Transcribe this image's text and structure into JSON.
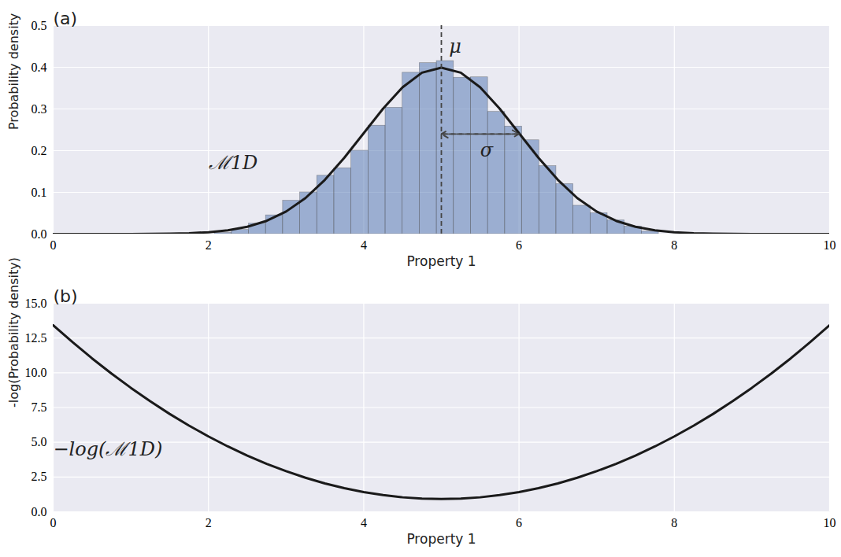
{
  "chart_data": [
    {
      "type": "histogram",
      "title": "(a)",
      "xlabel": "Property 1",
      "ylabel": "Probability density",
      "bins": [
        2.08,
        2.3,
        2.52,
        2.74,
        2.96,
        3.18,
        3.4,
        3.62,
        3.84,
        4.06,
        4.28,
        4.5,
        4.72,
        4.94,
        5.16,
        5.38,
        5.6,
        5.82,
        6.04,
        6.26,
        6.48,
        6.7,
        6.92,
        7.14,
        7.36,
        7.58,
        7.8
      ],
      "values": [
        0.003,
        0.01,
        0.025,
        0.045,
        0.08,
        0.1,
        0.14,
        0.158,
        0.2,
        0.26,
        0.303,
        0.387,
        0.41,
        0.415,
        0.375,
        0.376,
        0.293,
        0.258,
        0.225,
        0.163,
        0.12,
        0.068,
        0.05,
        0.033,
        0.018,
        0.006
      ],
      "color": "#4c72b0",
      "curve": {
        "color": "#1a1a1a",
        "x": [
          0,
          0.25,
          0.5,
          0.75,
          1,
          1.25,
          1.5,
          1.75,
          2,
          2.25,
          2.5,
          2.75,
          3,
          3.25,
          3.5,
          3.75,
          4,
          4.25,
          4.5,
          4.75,
          5,
          5.25,
          5.5,
          5.75,
          6,
          6.25,
          6.5,
          6.75,
          7,
          7.25,
          7.5,
          7.75,
          8,
          8.25,
          8.5,
          8.75,
          9,
          9.25,
          9.5,
          9.75,
          10
        ],
        "values": [
          0,
          0,
          0,
          0,
          0.0001,
          0.0004,
          0.0009,
          0.002,
          0.0044,
          0.0091,
          0.0175,
          0.0317,
          0.054,
          0.0863,
          0.13,
          0.183,
          0.242,
          0.301,
          0.352,
          0.387,
          0.399,
          0.387,
          0.352,
          0.301,
          0.242,
          0.183,
          0.13,
          0.0863,
          0.054,
          0.0317,
          0.0175,
          0.0091,
          0.0044,
          0.002,
          0.0009,
          0.0004,
          0.0001,
          0,
          0,
          0,
          0
        ]
      },
      "reference_lines": [
        {
          "x": 5,
          "line_style": "dashed"
        }
      ],
      "arrows": [
        {
          "x1": 5,
          "x2": 6,
          "y": 0.24,
          "line_style": "dashed"
        }
      ],
      "annotations": [
        {
          "text": "μ",
          "x": 5.1,
          "y": 0.45
        },
        {
          "text": "σ",
          "x": 5.5,
          "y": 0.2
        },
        {
          "text": "ℳ1D",
          "x": 2.0,
          "y": 0.17
        }
      ],
      "xlim": [
        0,
        10
      ],
      "ylim": [
        0,
        0.5
      ],
      "xticks": [
        0,
        2,
        4,
        6,
        8,
        10
      ],
      "yticks": [
        {
          "value": 0,
          "label": "0.0"
        },
        {
          "value": 0.1,
          "label": "0.1"
        },
        {
          "value": 0.2,
          "label": "0.2"
        },
        {
          "value": 0.3,
          "label": "0.3"
        },
        {
          "value": 0.4,
          "label": "0.4"
        },
        {
          "value": 0.5,
          "label": "0.5"
        }
      ],
      "grid": true
    },
    {
      "type": "line",
      "title": "(b)",
      "xlabel": "Property 1",
      "ylabel": "-log(Probability density)",
      "x": [
        0,
        0.25,
        0.5,
        0.75,
        1,
        1.25,
        1.5,
        1.75,
        2,
        2.25,
        2.5,
        2.75,
        3,
        3.25,
        3.5,
        3.75,
        4,
        4.25,
        4.5,
        4.75,
        5,
        5.25,
        5.5,
        5.75,
        6,
        6.25,
        6.5,
        6.75,
        7,
        7.25,
        7.5,
        7.75,
        8,
        8.25,
        8.5,
        8.75,
        9,
        9.25,
        9.5,
        9.75,
        10
      ],
      "values": [
        13.42,
        12.2,
        11.04,
        9.95,
        8.92,
        7.95,
        7.04,
        6.2,
        5.42,
        4.7,
        4.04,
        3.45,
        2.92,
        2.45,
        2.04,
        1.7,
        1.42,
        1.2,
        1.04,
        0.95,
        0.92,
        0.95,
        1.04,
        1.2,
        1.42,
        1.7,
        2.04,
        2.45,
        2.92,
        3.45,
        4.04,
        4.7,
        5.42,
        6.2,
        7.04,
        7.95,
        8.92,
        9.95,
        11.04,
        12.2,
        13.42
      ],
      "color": "#1a1a1a",
      "annotations": [
        {
          "text": "−log(ℳ1D)",
          "x": 0.0,
          "y": 4.5
        }
      ],
      "xlim": [
        0,
        10
      ],
      "ylim": [
        0,
        15
      ],
      "xticks": [
        0,
        2,
        4,
        6,
        8,
        10
      ],
      "yticks": [
        {
          "value": 0,
          "label": "0.0"
        },
        {
          "value": 2.5,
          "label": "2.5"
        },
        {
          "value": 5,
          "label": "5.0"
        },
        {
          "value": 7.5,
          "label": "7.5"
        },
        {
          "value": 10,
          "label": "10.0"
        },
        {
          "value": 12.5,
          "label": "12.5"
        },
        {
          "value": 15,
          "label": "15.0"
        }
      ],
      "grid": true
    }
  ]
}
